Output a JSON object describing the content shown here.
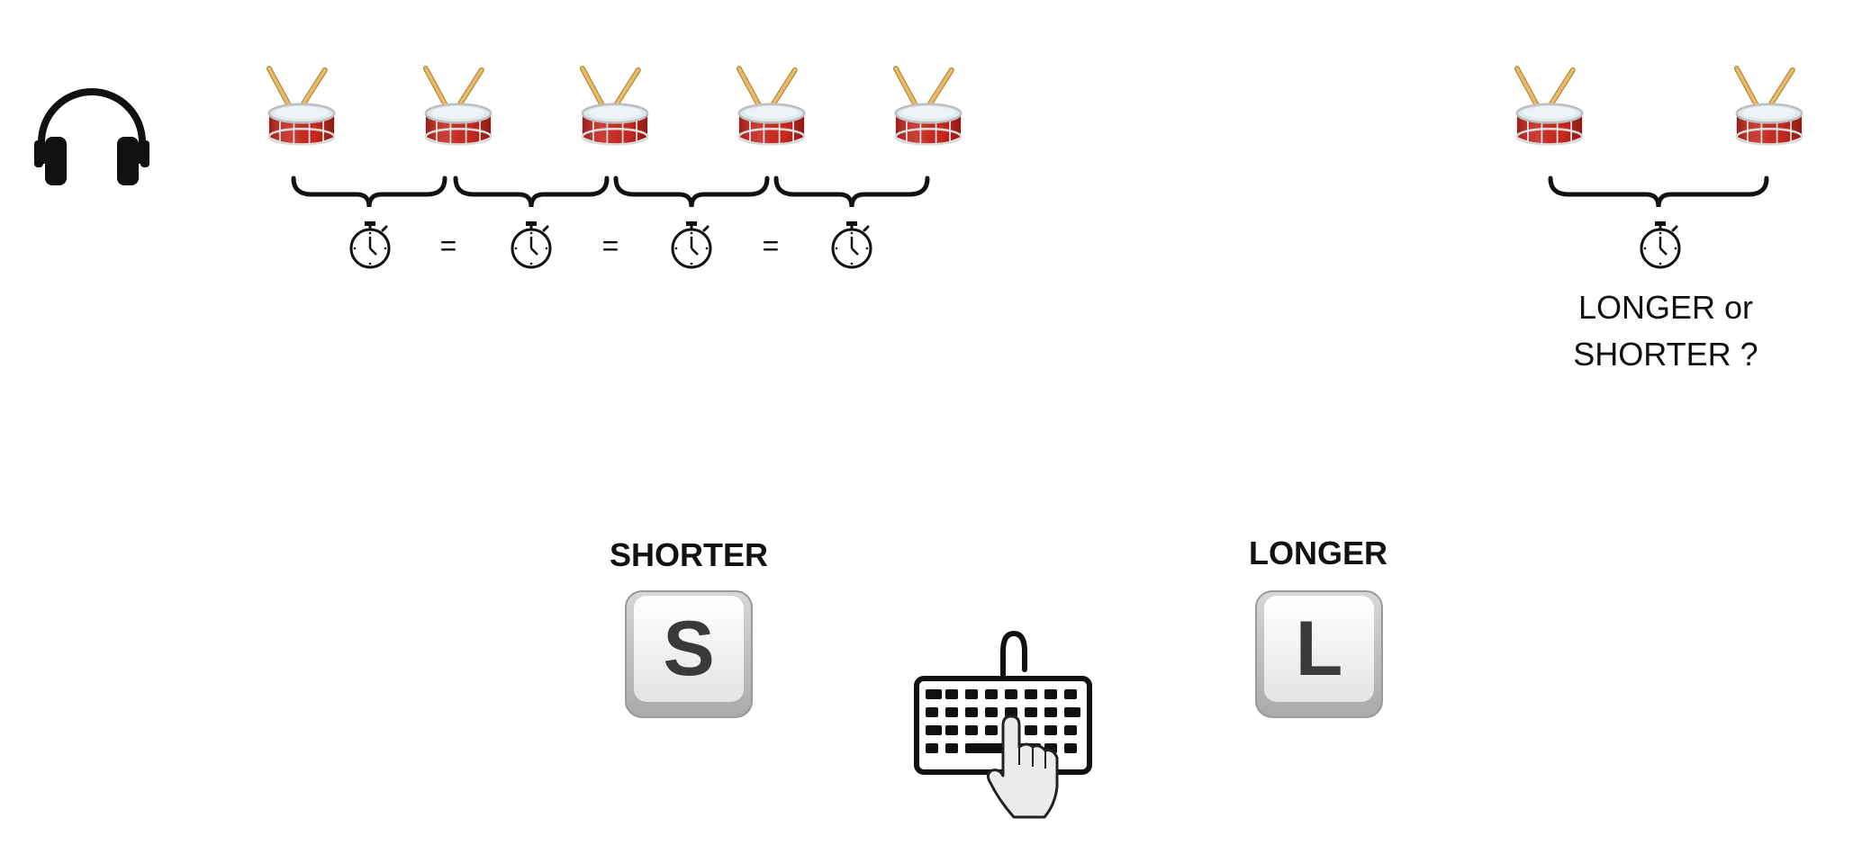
{
  "icons": {
    "headphones": "headphones-icon",
    "drum": "drum-icon",
    "stopwatch": "stopwatch-icon",
    "brace": "curly-brace",
    "keyboard": "keyboard-icon",
    "hand": "pointing-hand-icon"
  },
  "colors": {
    "drum_red": "#c8281e",
    "drum_head": "#dfe9ee",
    "stick": "#e2b35d",
    "ink": "#111111",
    "key_face": "#f2f2f2",
    "key_edge": "#b9b9b9"
  },
  "sequence": {
    "equals_signs": [
      "=",
      "=",
      "="
    ]
  },
  "comparison": {
    "question_line1": "LONGER or",
    "question_line2": "SHORTER ?"
  },
  "keys": {
    "shorter_label": "SHORTER",
    "shorter_key": "S",
    "longer_label": "LONGER",
    "longer_key": "L"
  }
}
